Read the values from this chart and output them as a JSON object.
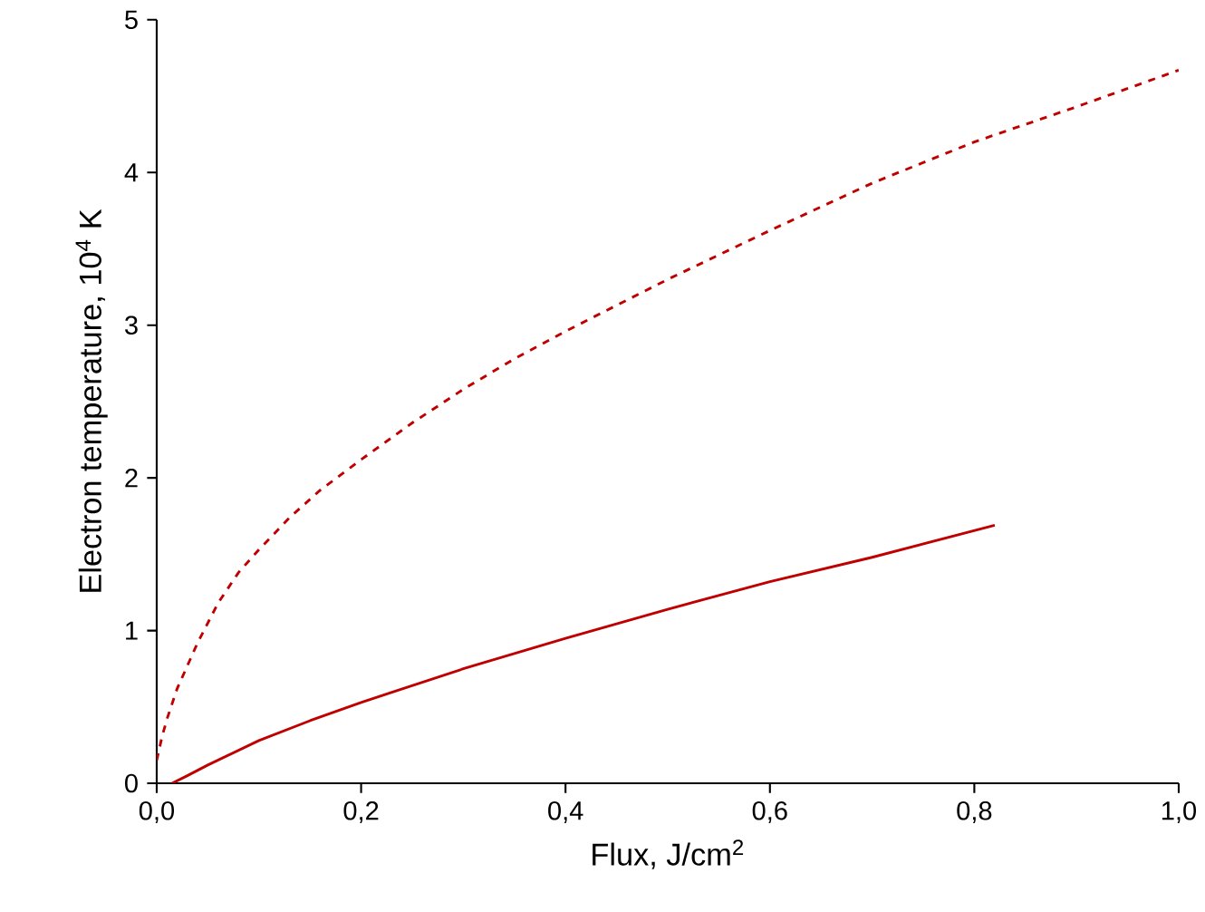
{
  "chart_data": {
    "type": "line",
    "xlabel": "Flux, J/cm$^{2}$",
    "ylabel": "Electron temperature, 10$^{4}$ K",
    "xlim": [
      0,
      1
    ],
    "ylim": [
      0,
      5
    ],
    "xticks": [
      {
        "value": 0,
        "label": "0,0"
      },
      {
        "value": 0.2,
        "label": "0,2"
      },
      {
        "value": 0.4,
        "label": "0,4"
      },
      {
        "value": 0.6,
        "label": "0,6"
      },
      {
        "value": 0.8,
        "label": "0,8"
      },
      {
        "value": 1,
        "label": "1,0"
      }
    ],
    "yticks": [
      0,
      1,
      2,
      3,
      4,
      5
    ],
    "series": [
      {
        "color": "#c00000",
        "line_style": "dashed",
        "x": [
          0,
          0.005,
          0.01,
          0.02,
          0.04,
          0.06,
          0.08,
          0.1,
          0.13,
          0.16,
          0.2,
          0.25,
          0.3,
          0.35,
          0.4,
          0.5,
          0.6,
          0.7,
          0.8,
          0.9,
          1.0
        ],
        "values": [
          0.15,
          0.3,
          0.42,
          0.62,
          0.92,
          1.18,
          1.38,
          1.53,
          1.74,
          1.92,
          2.12,
          2.36,
          2.58,
          2.78,
          2.96,
          3.3,
          3.62,
          3.93,
          4.2,
          4.43,
          4.67
        ]
      },
      {
        "color": "#c00000",
        "line_style": "solid",
        "x": [
          0.015,
          0.03,
          0.05,
          0.1,
          0.15,
          0.2,
          0.3,
          0.4,
          0.5,
          0.6,
          0.7,
          0.82
        ],
        "values": [
          0,
          0.05,
          0.12,
          0.28,
          0.41,
          0.53,
          0.75,
          0.95,
          1.14,
          1.32,
          1.48,
          1.69
        ]
      }
    ]
  }
}
